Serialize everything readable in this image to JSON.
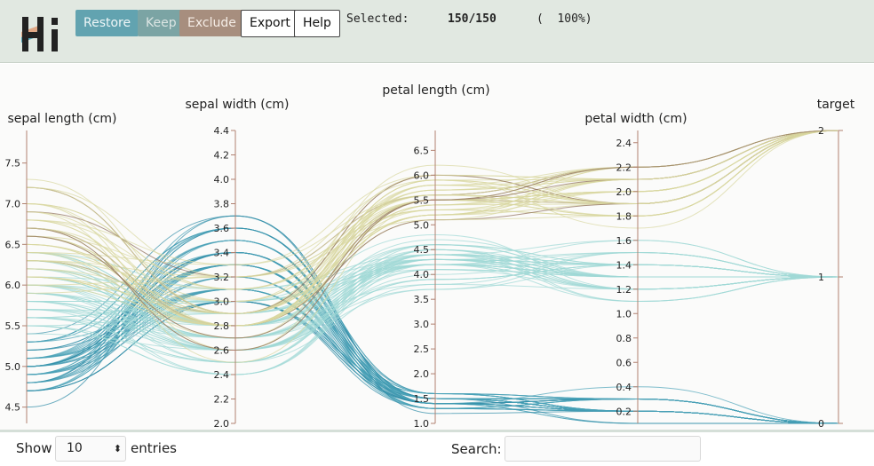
{
  "toolbar": {
    "restore_label": "Restore",
    "keep_label": "Keep",
    "exclude_label": "Exclude",
    "export_label": "Export",
    "help_label": "Help"
  },
  "selection": {
    "label": "Selected:",
    "count": "150/150",
    "percent": "(  100%)"
  },
  "colors": {
    "setosa": "#4aa3b8",
    "versicolor": "#9fd8d6",
    "virginica": "#d9d7a0",
    "dark_accent": "#8a6a55",
    "axis": "#b08070"
  },
  "axes": [
    {
      "label": "sepal length (cm)",
      "ticks": [
        "7.5",
        "7.0",
        "6.5",
        "6.0",
        "5.5",
        "5.0",
        "4.5"
      ]
    },
    {
      "label": "sepal width (cm)",
      "ticks": [
        "4.4",
        "4.2",
        "4.0",
        "3.8",
        "3.6",
        "3.4",
        "3.2",
        "3.0",
        "2.8",
        "2.6",
        "2.4",
        "2.2",
        "2.0"
      ]
    },
    {
      "label": "petal length (cm)",
      "ticks": [
        "6.5",
        "6.0",
        "5.5",
        "5.0",
        "4.5",
        "4.0",
        "3.5",
        "3.0",
        "2.5",
        "2.0",
        "1.5",
        "1.0"
      ]
    },
    {
      "label": "petal width (cm)",
      "ticks": [
        "2.4",
        "2.2",
        "2.0",
        "1.8",
        "1.6",
        "1.4",
        "1.2",
        "1.0",
        "0.8",
        "0.6",
        "0.4",
        "0.2"
      ]
    },
    {
      "label": "target",
      "ticks": [
        "2",
        "1",
        "0"
      ]
    }
  ],
  "footer": {
    "show_label": "Show",
    "entries_value": "10",
    "entries_label": "entries",
    "search_label": "Search:",
    "search_value": ""
  }
}
